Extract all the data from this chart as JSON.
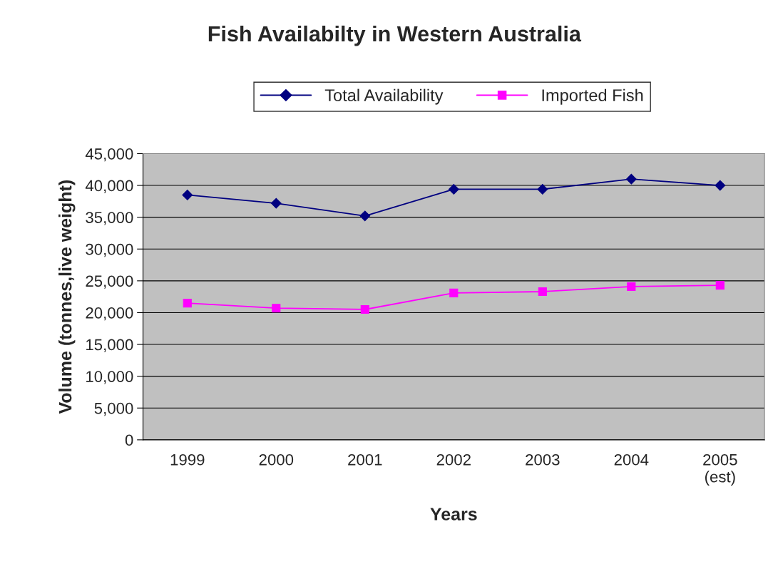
{
  "chart_data": {
    "type": "line",
    "title": "Fish Availabilty in Western Australia",
    "xlabel": "Years",
    "ylabel": "Volume (tonnes,live weight)",
    "categories": [
      "1999",
      "2000",
      "2001",
      "2002",
      "2003",
      "2004",
      "2005\n(est)"
    ],
    "series": [
      {
        "name": "Total Availability",
        "color": "#000080",
        "marker": "diamond",
        "values": [
          38500,
          37200,
          35200,
          39400,
          39400,
          41000,
          40000
        ]
      },
      {
        "name": "Imported Fish",
        "color": "#ff00ff",
        "marker": "square",
        "values": [
          21500,
          20700,
          20500,
          23100,
          23300,
          24100,
          24300
        ]
      }
    ],
    "ylim": [
      0,
      45000
    ],
    "yticks": [
      0,
      {
        "value": 5000,
        "label": "5,000"
      },
      {
        "value": 10000,
        "label": "10,000"
      },
      {
        "value": 15000,
        "label": "15,000"
      },
      {
        "value": 20000,
        "label": "20,000"
      },
      {
        "value": 25000,
        "label": "25,000"
      },
      {
        "value": 30000,
        "label": "30,000"
      },
      {
        "value": 35000,
        "label": "35,000"
      },
      {
        "value": 40000,
        "label": "40,000"
      },
      {
        "value": 45000,
        "label": "45,000"
      }
    ],
    "grid": "y",
    "legend": "top",
    "line_style": "solid"
  }
}
